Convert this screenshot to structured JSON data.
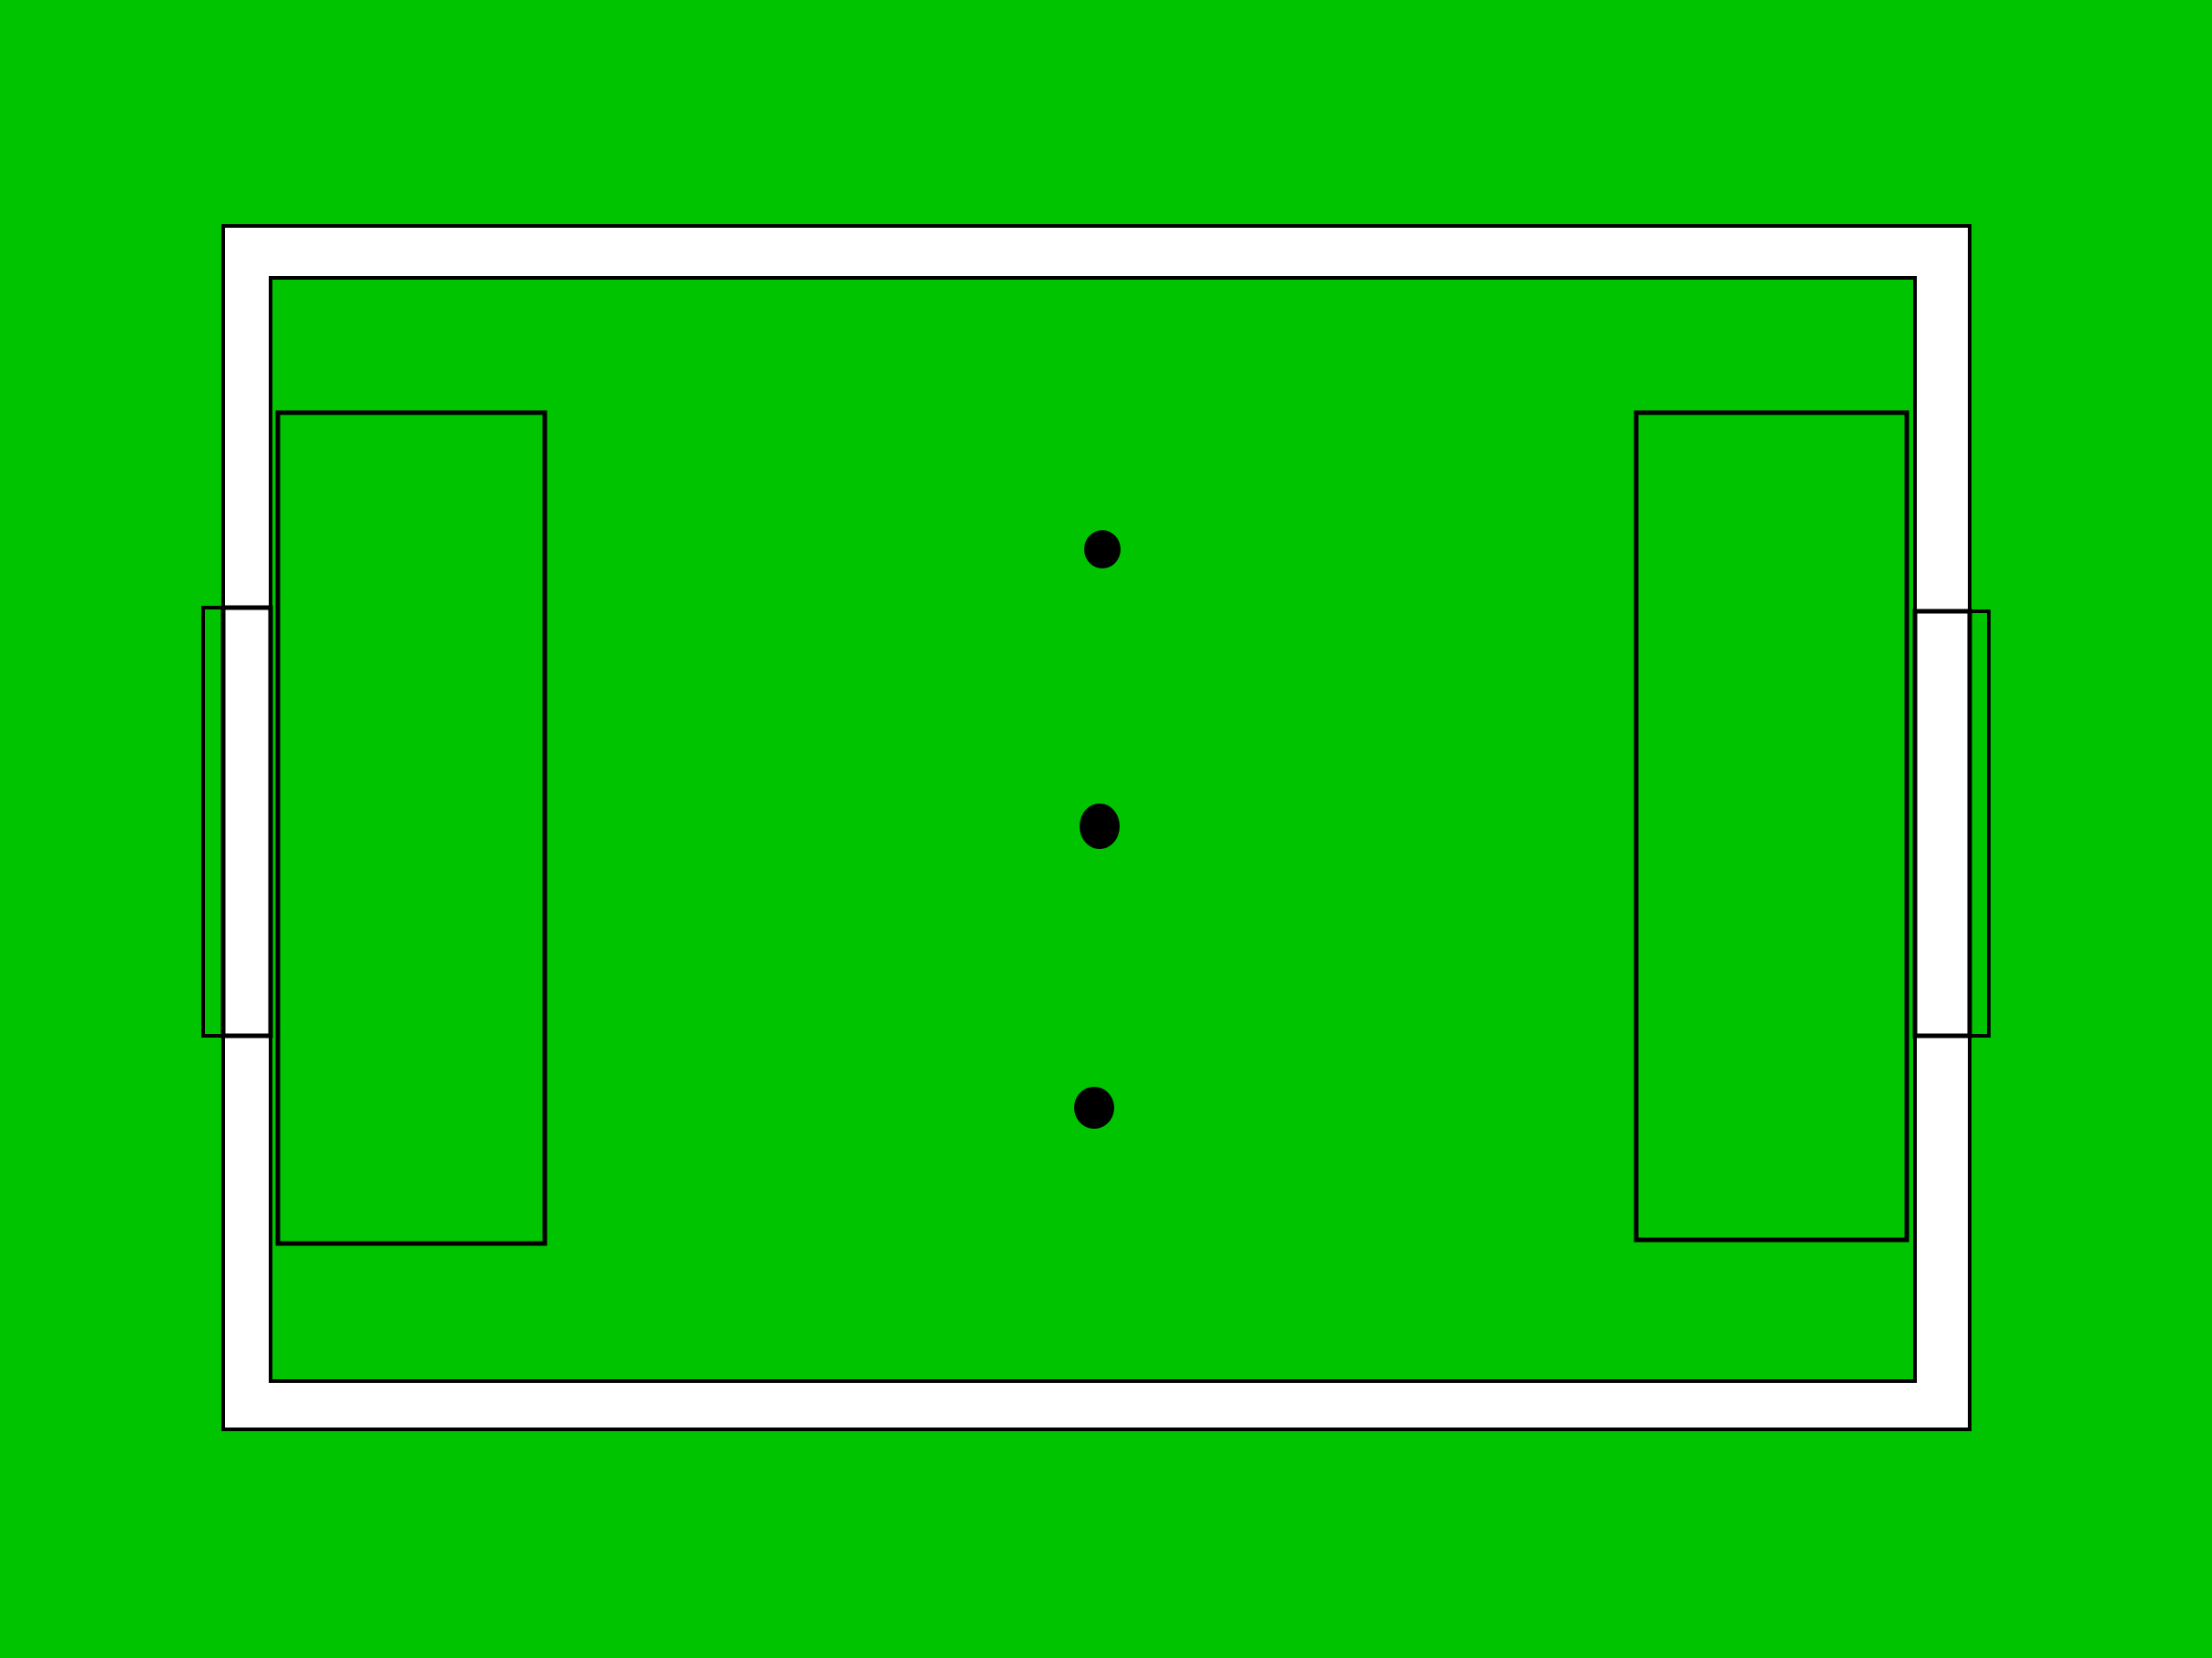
{
  "field": {
    "background_color": "#00C400",
    "pitch_color": "#00C400",
    "border_color": "#FFFFFF",
    "line_color": "#000000"
  },
  "markers": {
    "count": 3,
    "color": "#000000"
  }
}
